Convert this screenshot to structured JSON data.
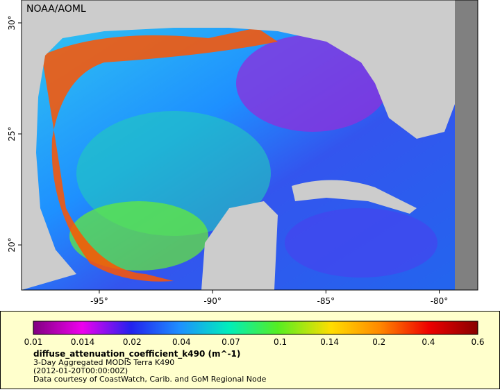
{
  "map": {
    "attribution": "NOAA/AOML",
    "xlim": [
      -98.43,
      -78.3
    ],
    "ylim": [
      17.97,
      31.03
    ],
    "xticks": [
      {
        "value": -95,
        "label": "-95°"
      },
      {
        "value": -90,
        "label": "-90°"
      },
      {
        "value": -85,
        "label": "-85°"
      },
      {
        "value": -80,
        "label": "-80°"
      }
    ],
    "yticks": [
      {
        "value": 20,
        "label": "20°"
      },
      {
        "value": 25,
        "label": "25°"
      },
      {
        "value": 30,
        "label": "30°"
      }
    ]
  },
  "legend": {
    "ticks": [
      0.01,
      0.014,
      0.02,
      0.04,
      0.07,
      0.1,
      0.14,
      0.2,
      0.4,
      0.6
    ],
    "variable": "diffuse_attenuation_coefficient_k490 (m^-1)",
    "lines": [
      "3-Day Aggregated MODIS Terra K490",
      "(2012-01-20T00:00:00Z)",
      "Data courtesy of CoastWatch, Carib. and GoM Regional Node"
    ]
  }
}
